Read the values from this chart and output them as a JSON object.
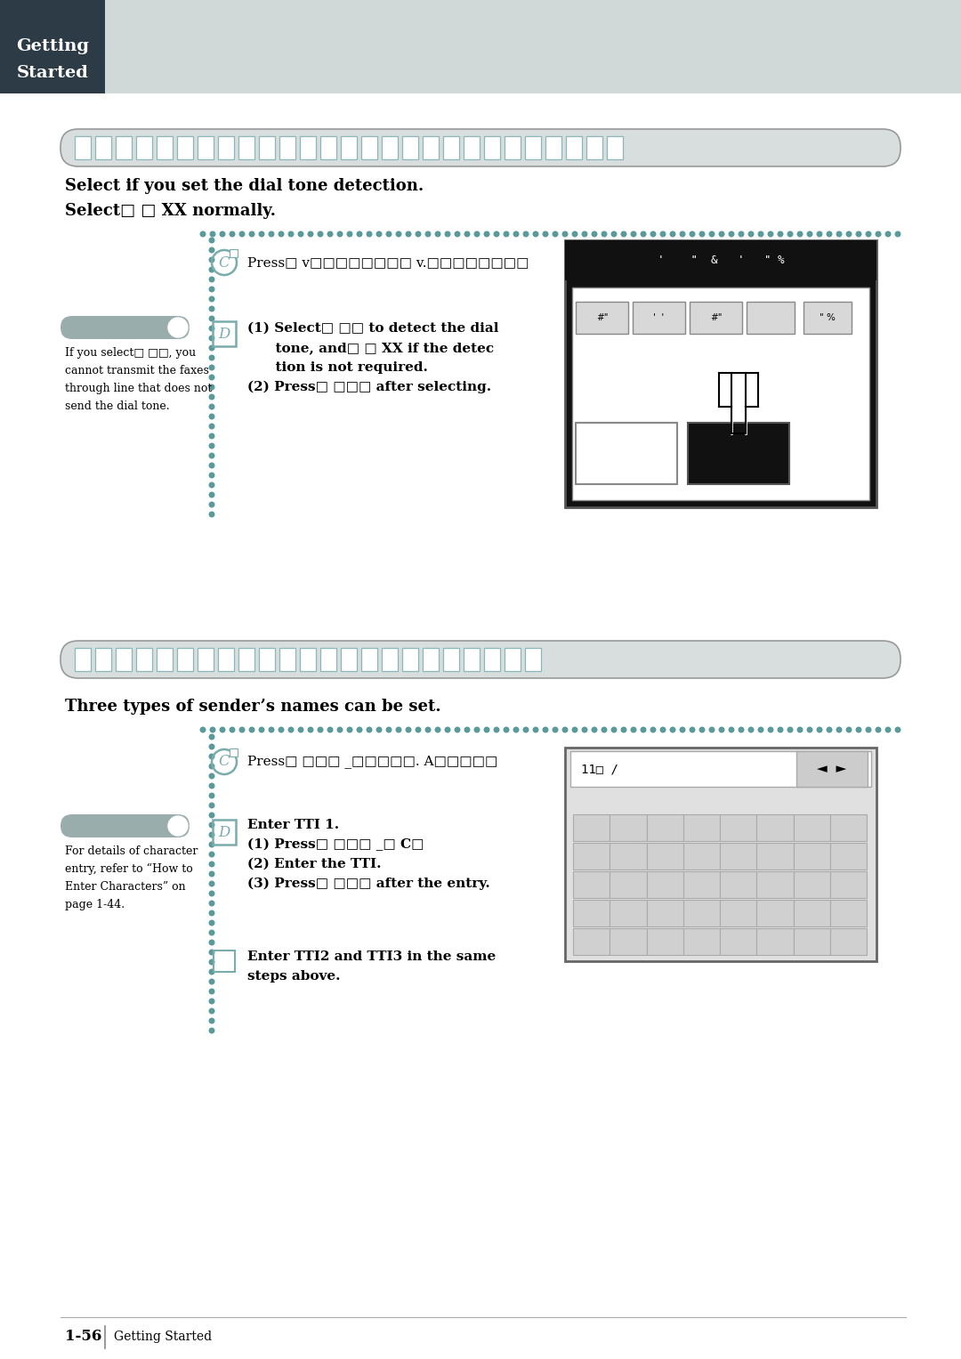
{
  "bg_color": "#ffffff",
  "header_bg": "#d0d8d8",
  "header_dark": "#2d3b47",
  "header_text_line1": "Getting",
  "header_text_line2": "Started",
  "pill_color": "#d8dddd",
  "pill_border": "#999999",
  "sec1_title1": "Select if you set the dial tone detection.",
  "sec1_title2": "Select□ □ XX normally.",
  "sec1_step_c": "Press□ v□□□□□□□□ v.□□□□□□□□",
  "sec1_step_d1": "(1) Select□ □□ to detect the dial",
  "sec1_step_d2": "      tone, and□ □ XX if the detec",
  "sec1_step_d3": "      tion is not required.",
  "sec1_step_d4": "(2) Press□ □□□ after selecting.",
  "sec1_note1": "If you select□ □□, you",
  "sec1_note2": "cannot transmit the faxes",
  "sec1_note3": "through line that does not",
  "sec1_note4": "send the dial tone.",
  "sec2_title": "Three types of sender’s names can be set.",
  "sec2_step_c": "Press□ □□□ _□□□□□. A□□□□□",
  "sec2_step_d0": "Enter TTI 1.",
  "sec2_step_d1": "(1) Press□ □□□ _□ C□",
  "sec2_step_d2": "(2) Enter the TTI.",
  "sec2_step_d3": "(3) Press□ □□□ after the entry.",
  "sec2_step_e1": "Enter TTI2 and TTI3 in the same",
  "sec2_step_e2": "steps above.",
  "sec2_note1": "For details of character",
  "sec2_note2": "entry, refer to “How to",
  "sec2_note3": "Enter Characters” on",
  "sec2_note4": "page 1-44.",
  "footer_page": "1-56",
  "footer_section": "Getting Started",
  "dot_color": "#5a9a9a",
  "step_letter_color": "#7aacac"
}
